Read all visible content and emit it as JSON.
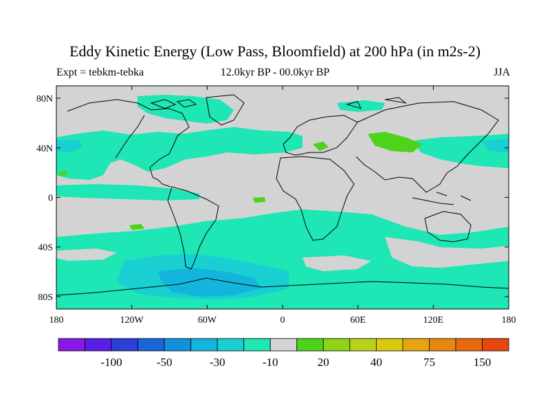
{
  "title": "Eddy Kinetic Energy (Low Pass, Bloomfield) at 200 hPa (in m2s-2)",
  "subtitle_left": "Expt = tebkm-tebka",
  "subtitle_center": "12.0kyr BP - 00.0kyr BP",
  "subtitle_right": "JJA",
  "map": {
    "lon_range": [
      -180,
      180
    ],
    "lat_range": [
      -90,
      90
    ],
    "x_ticks": [
      {
        "lon": -180,
        "label": "180"
      },
      {
        "lon": -120,
        "label": "120W"
      },
      {
        "lon": -60,
        "label": "60W"
      },
      {
        "lon": 0,
        "label": "0"
      },
      {
        "lon": 60,
        "label": "60E"
      },
      {
        "lon": 120,
        "label": "120E"
      },
      {
        "lon": 180,
        "label": "180"
      }
    ],
    "y_ticks": [
      {
        "lat": 80,
        "label": "80N"
      },
      {
        "lat": 40,
        "label": "40N"
      },
      {
        "lat": 0,
        "label": "0"
      },
      {
        "lat": -40,
        "label": "40S"
      },
      {
        "lat": -80,
        "label": "80S"
      }
    ],
    "background_color": "#d3d3d3",
    "coastline_color": "#000000"
  },
  "colorbar": {
    "colors": [
      "#8a19e6",
      "#5a1ee6",
      "#2e3fd8",
      "#1766d8",
      "#148fdb",
      "#14b5dc",
      "#19cfd2",
      "#1ee6b4",
      "#d3d3d3",
      "#4fd21a",
      "#8ed21a",
      "#b8d21a",
      "#d8c80f",
      "#e6a50f",
      "#e6870f",
      "#e6690f",
      "#e6460f"
    ],
    "labels": [
      {
        "boundary": 2,
        "text": "-100"
      },
      {
        "boundary": 4,
        "text": "-50"
      },
      {
        "boundary": 6,
        "text": "-30"
      },
      {
        "boundary": 8,
        "text": "-10"
      },
      {
        "boundary": 10,
        "text": "20"
      },
      {
        "boundary": 12,
        "text": "40"
      },
      {
        "boundary": 14,
        "text": "75"
      },
      {
        "boundary": 16,
        "text": "150"
      }
    ]
  }
}
